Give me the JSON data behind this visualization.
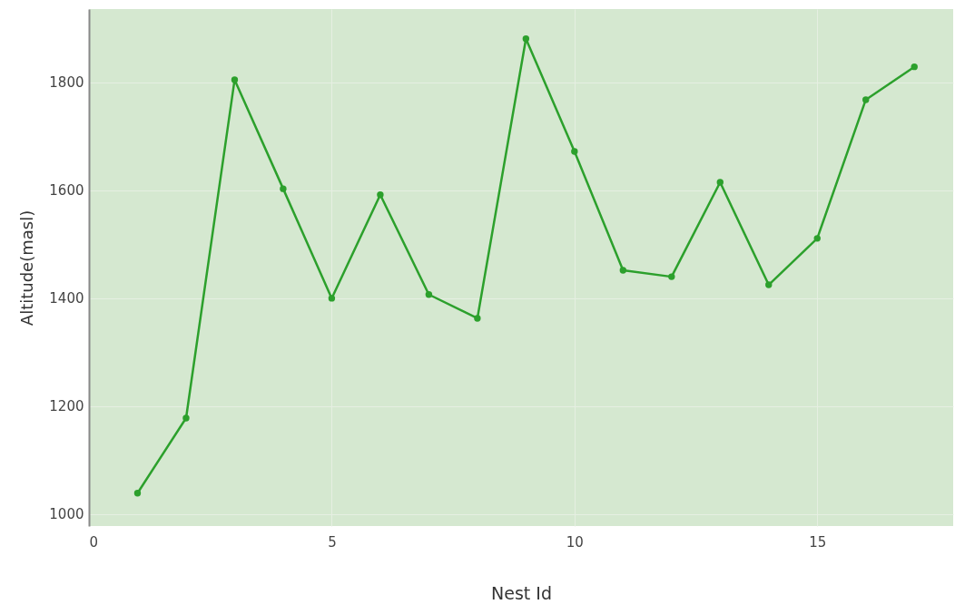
{
  "chart_data": {
    "type": "line",
    "xlabel": "Nest Id",
    "ylabel": "Altitude(masl)",
    "x": [
      1,
      2,
      3,
      4,
      5,
      6,
      7,
      8,
      9,
      10,
      11,
      12,
      13,
      14,
      15,
      16,
      17
    ],
    "series": [
      {
        "color": "#2ca02c",
        "values": [
          1039,
          1178,
          1805,
          1603,
          1400,
          1592,
          1407,
          1363,
          1881,
          1672,
          1452,
          1440,
          1615,
          1425,
          1511,
          1768,
          1829
        ]
      }
    ],
    "xlim": [
      0,
      17.8
    ],
    "xticks": [
      0,
      5,
      10,
      15
    ],
    "ylim": [
      978,
      1936
    ],
    "yticks": [
      1000,
      1200,
      1400,
      1600,
      1800
    ],
    "grid": true,
    "marker": "circle",
    "line_style": "solid"
  }
}
